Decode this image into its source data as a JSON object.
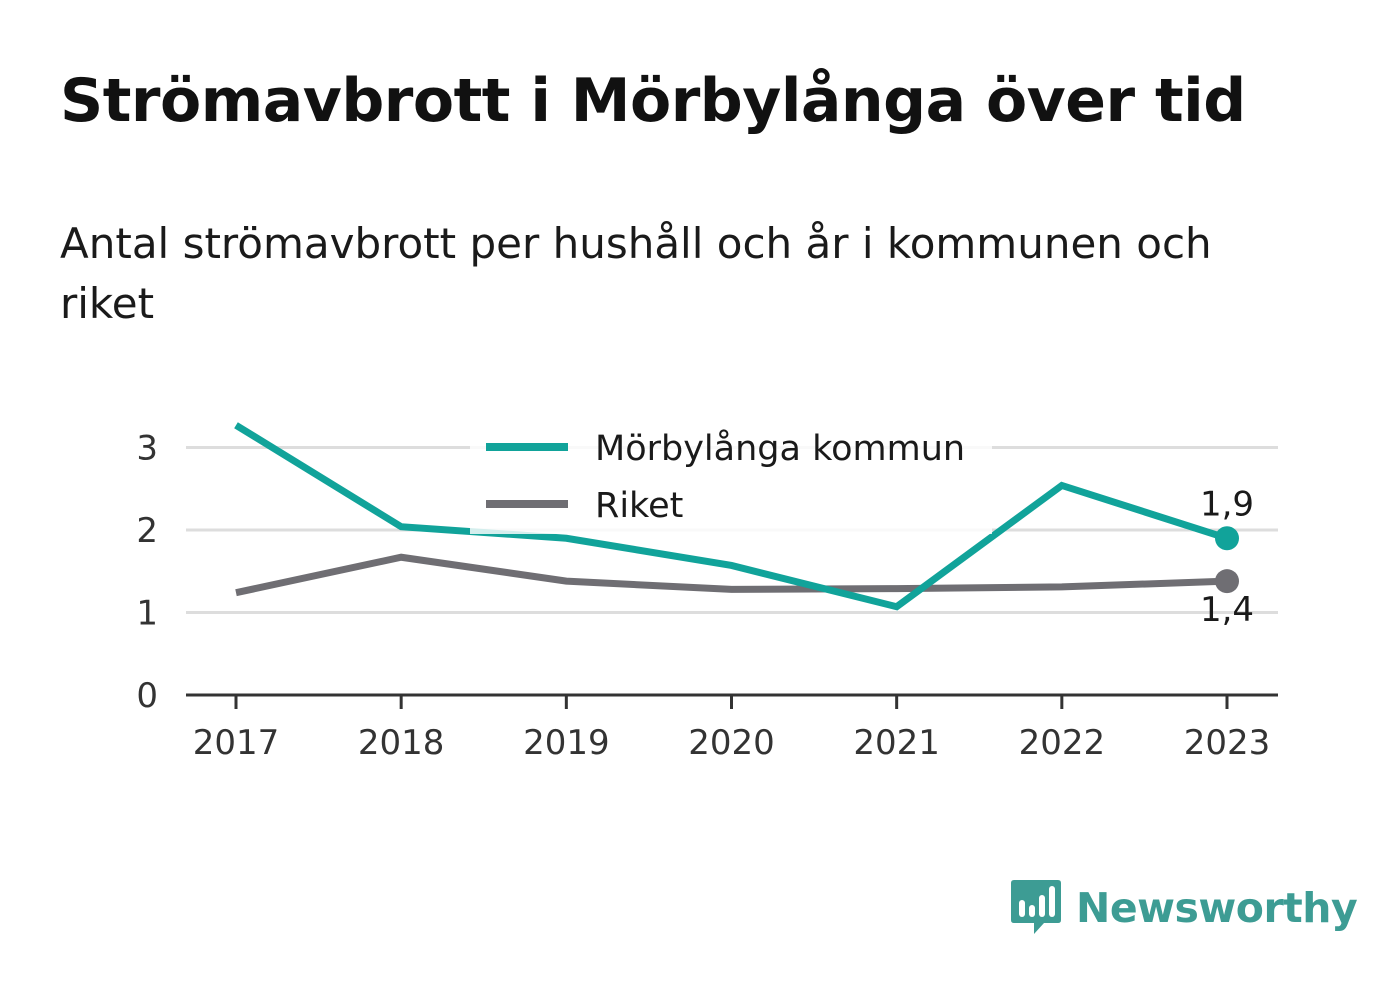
{
  "title": "Strömavbrott i Mörbylånga över tid",
  "subtitle": "Antal strömavbrott per hushåll och år i kommunen och riket",
  "brand": {
    "name": "Newsworthy",
    "icon": "bar-chart-logo-icon",
    "color": "#3d9c94"
  },
  "chart_data": {
    "type": "line",
    "x": [
      "2017",
      "2018",
      "2019",
      "2020",
      "2021",
      "2022",
      "2023"
    ],
    "ylim": [
      0,
      3.2
    ],
    "yticks": [
      0,
      1,
      2,
      3
    ],
    "grid": true,
    "legend": "top-center",
    "series": [
      {
        "name": "Mörbylånga kommun",
        "color": "#11a39a",
        "values": [
          3.27,
          2.04,
          1.9,
          1.57,
          1.07,
          2.54,
          1.9
        ],
        "end_label": "1,9",
        "end_label_position": "above"
      },
      {
        "name": "Riket",
        "color": "#6f6e73",
        "values": [
          1.24,
          1.67,
          1.38,
          1.28,
          1.29,
          1.31,
          1.38
        ],
        "end_label": "1,4",
        "end_label_position": "below"
      }
    ]
  }
}
